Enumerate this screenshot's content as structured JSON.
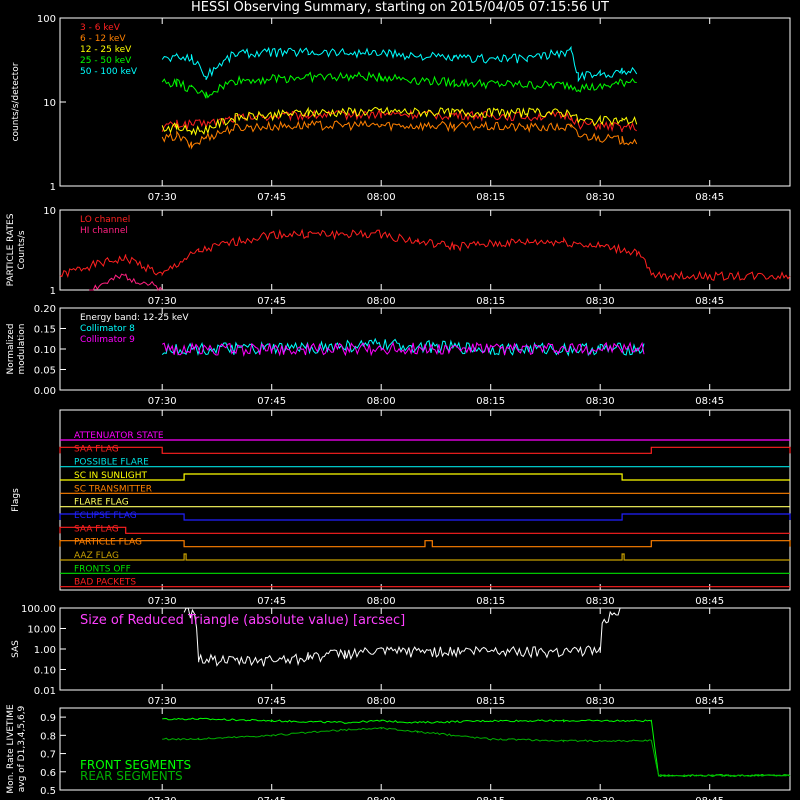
{
  "title": "HESSI Observing Summary, starting on 2015/04/05 07:15:56 UT",
  "x_ticks": [
    "07:30",
    "07:45",
    "08:00",
    "08:15",
    "08:30",
    "08:45"
  ],
  "chart_data": [
    {
      "type": "line",
      "name": "count-rates",
      "ylabel": "counts/s/detector",
      "scale": "log",
      "ylim": [
        1,
        100
      ],
      "y_ticks": [
        "1",
        "10",
        "100"
      ],
      "legend_position": "top-left",
      "series": [
        {
          "name": "3 - 6 keV",
          "color": "#ff2020",
          "x": [
            "07:30",
            "07:32",
            "07:34",
            "07:36",
            "07:40",
            "07:50",
            "08:00",
            "08:10",
            "08:20",
            "08:26",
            "08:27",
            "08:30",
            "08:33",
            "08:35"
          ],
          "values": [
            5.0,
            5.5,
            5.5,
            5.5,
            6.5,
            7.0,
            7.2,
            7.0,
            6.8,
            6.8,
            5.5,
            5.2,
            5.0,
            5.0
          ]
        },
        {
          "name": "6 - 12 keV",
          "color": "#ff8000",
          "x": [
            "07:30",
            "07:32",
            "07:34",
            "07:36",
            "07:40",
            "07:50",
            "08:00",
            "08:10",
            "08:20",
            "08:26",
            "08:27",
            "08:30",
            "08:33",
            "08:35"
          ],
          "values": [
            3.5,
            4.0,
            3.0,
            3.8,
            5.0,
            5.3,
            5.3,
            5.2,
            5.0,
            5.0,
            4.0,
            3.8,
            3.5,
            3.5
          ]
        },
        {
          "name": "12 - 25 keV",
          "color": "#ffff00",
          "x": [
            "07:30",
            "07:32",
            "07:34",
            "07:36",
            "07:40",
            "07:50",
            "08:00",
            "08:10",
            "08:20",
            "08:26",
            "08:27",
            "08:30",
            "08:33",
            "08:35"
          ],
          "values": [
            5.0,
            5.0,
            4.5,
            4.8,
            6.5,
            7.5,
            7.8,
            7.5,
            7.5,
            7.5,
            6.0,
            6.0,
            6.0,
            6.0
          ]
        },
        {
          "name": "25 - 50 keV",
          "color": "#00ff00",
          "x": [
            "07:30",
            "07:32",
            "07:34",
            "07:36",
            "07:40",
            "07:50",
            "08:00",
            "08:10",
            "08:20",
            "08:26",
            "08:27",
            "08:30",
            "08:33",
            "08:35"
          ],
          "values": [
            17,
            17,
            14,
            12,
            18,
            20,
            20,
            17,
            16,
            16,
            15,
            15,
            17,
            19
          ]
        },
        {
          "name": "50 - 100 keV",
          "color": "#00ffff",
          "x": [
            "07:30",
            "07:32",
            "07:34",
            "07:36",
            "07:40",
            "07:50",
            "08:00",
            "08:10",
            "08:20",
            "08:26",
            "08:27",
            "08:30",
            "08:33",
            "08:35"
          ],
          "values": [
            33,
            34,
            34,
            20,
            38,
            40,
            38,
            33,
            33,
            40,
            20,
            22,
            23,
            24
          ]
        }
      ]
    },
    {
      "type": "line",
      "name": "particle-rates",
      "ylabel": "PARTICLE RATES\nCounts/s",
      "scale": "log",
      "ylim": [
        1,
        10
      ],
      "y_ticks": [
        "1",
        "10"
      ],
      "legend_position": "top-left",
      "series": [
        {
          "name": "LO channel",
          "color": "#ff2020",
          "x": [
            "07:16",
            "07:20",
            "07:25",
            "07:30",
            "07:35",
            "07:40",
            "07:45",
            "07:50",
            "08:00",
            "08:05",
            "08:10",
            "08:20",
            "08:25",
            "08:30",
            "08:35",
            "08:37",
            "08:40",
            "08:45",
            "08:50",
            "08:56"
          ],
          "values": [
            1.5,
            2.0,
            2.5,
            1.5,
            3.0,
            4.0,
            5.0,
            5.0,
            5.0,
            4.0,
            3.5,
            4.0,
            4.0,
            3.5,
            3.0,
            1.5,
            1.5,
            1.5,
            1.5,
            1.5
          ]
        },
        {
          "name": "HI channel",
          "color": "#ff2080",
          "x": [
            "07:20",
            "07:25",
            "07:30"
          ],
          "values": [
            1.0,
            1.5,
            1.0
          ]
        }
      ]
    },
    {
      "type": "line",
      "name": "modulation",
      "ylabel": "Normalized\nmodulation",
      "ylim": [
        0.0,
        0.2
      ],
      "y_ticks": [
        "0.00",
        "0.05",
        "0.10",
        "0.15",
        "0.20"
      ],
      "annotation": "Energy band: 12-25 keV",
      "legend_position": "top-left",
      "series": [
        {
          "name": "Collimator 8",
          "color": "#00ffff",
          "x": [
            "07:30",
            "07:45",
            "08:00",
            "08:15",
            "08:30",
            "08:36"
          ],
          "values": [
            0.1,
            0.1,
            0.11,
            0.1,
            0.1,
            0.1
          ]
        },
        {
          "name": "Collimator 9",
          "color": "#ff00ff",
          "x": [
            "07:30",
            "07:45",
            "08:00",
            "08:15",
            "08:30",
            "08:36"
          ],
          "values": [
            0.1,
            0.1,
            0.1,
            0.1,
            0.1,
            0.1
          ]
        }
      ]
    },
    {
      "type": "line",
      "name": "flags",
      "ylabel": "Flags",
      "flags": [
        {
          "label": "ATTENUATOR STATE",
          "color": "#ff00ff",
          "on": []
        },
        {
          "label": "SAA FLAG",
          "color": "#ff2020",
          "on": [
            [
              "07:16",
              "07:30"
            ],
            [
              "08:37",
              "08:56"
            ]
          ]
        },
        {
          "label": "POSSIBLE FLARE",
          "color": "#00e0e0",
          "on": []
        },
        {
          "label": "SC IN SUNLIGHT",
          "color": "#ffff00",
          "on": [
            [
              "07:33",
              "08:33"
            ]
          ]
        },
        {
          "label": "SC TRANSMITTER",
          "color": "#ff8000",
          "on": []
        },
        {
          "label": "FLARE FLAG",
          "color": "#ffff60",
          "on": []
        },
        {
          "label": "ECLIPSE FLAG",
          "color": "#2020ff",
          "on": [
            [
              "07:16",
              "07:33"
            ],
            [
              "08:33",
              "08:56"
            ]
          ]
        },
        {
          "label": "SAA FLAG",
          "color": "#ff2020",
          "on": [
            [
              "07:16",
              "07:25"
            ]
          ]
        },
        {
          "label": "PARTICLE FLAG",
          "color": "#ff8000",
          "on": [
            [
              "07:16",
              "07:33"
            ],
            [
              "08:06",
              "08:07"
            ],
            [
              "08:37",
              "08:56"
            ]
          ]
        },
        {
          "label": "AAZ FLAG",
          "color": "#c8a000",
          "on": [
            [
              "07:33",
              "07:33"
            ],
            [
              "08:33",
              "08:33"
            ]
          ]
        },
        {
          "label": "FRONTS OFF",
          "color": "#00e000",
          "on": []
        },
        {
          "label": "BAD PACKETS",
          "color": "#ff2020",
          "on": []
        }
      ]
    },
    {
      "type": "line",
      "name": "sas",
      "ylabel": "SAS",
      "scale": "log",
      "ylim": [
        0.01,
        100
      ],
      "y_ticks": [
        "0.01",
        "0.10",
        "1.00",
        "10.00",
        "100.00"
      ],
      "annotation": "Size of Reduced Triangle (absolute value) [arcsec]",
      "series": [
        {
          "name": "",
          "color": "#ffffff",
          "x": [
            "07:33",
            "07:35",
            "07:40",
            "07:45",
            "07:50",
            "07:55",
            "08:00",
            "08:10",
            "08:20",
            "08:30",
            "08:33"
          ],
          "values": [
            100,
            0.3,
            0.2,
            0.25,
            0.35,
            0.5,
            0.6,
            0.65,
            0.7,
            0.7,
            100
          ]
        }
      ]
    },
    {
      "type": "line",
      "name": "livetime",
      "ylabel": "Mon. Rate LIVETIME\navg of D1,3,4,5,6,9",
      "ylim": [
        0.5,
        0.95
      ],
      "y_ticks": [
        "0.5",
        "0.6",
        "0.7",
        "0.8",
        "0.9"
      ],
      "legend_position": "bottom-left",
      "series": [
        {
          "name": "FRONT SEGMENTS",
          "color": "#00ff00",
          "x": [
            "07:30",
            "07:35",
            "07:45",
            "07:55",
            "08:00",
            "08:05",
            "08:15",
            "08:25",
            "08:37",
            "08:38",
            "08:56"
          ],
          "values": [
            0.89,
            0.89,
            0.88,
            0.87,
            0.88,
            0.87,
            0.88,
            0.88,
            0.88,
            0.58,
            0.58
          ]
        },
        {
          "name": "REAR SEGMENTS",
          "color": "#00b000",
          "x": [
            "07:30",
            "07:35",
            "07:45",
            "07:55",
            "08:00",
            "08:05",
            "08:15",
            "08:25",
            "08:37",
            "08:38",
            "08:56"
          ],
          "values": [
            0.78,
            0.78,
            0.8,
            0.83,
            0.84,
            0.82,
            0.78,
            0.77,
            0.77,
            0.58,
            0.58
          ]
        }
      ]
    }
  ]
}
